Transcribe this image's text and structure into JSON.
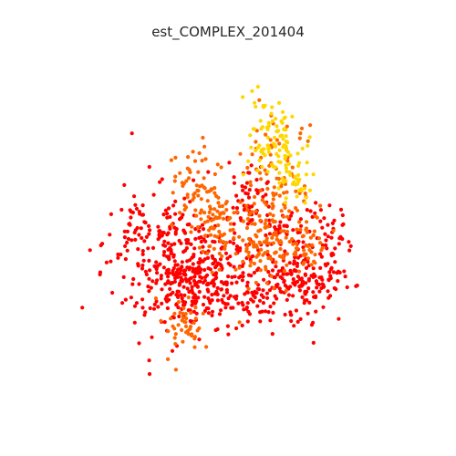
{
  "chart_data": {
    "type": "scatter",
    "title": "est_COMPLEX_201404",
    "xlabel": "",
    "ylabel": "",
    "xlim": [
      0,
      100
    ],
    "ylim": [
      0,
      100
    ],
    "grid": false,
    "axes_visible": false,
    "colors": {
      "red": "#ff0000",
      "orange": "#ff6600",
      "yellow": "#ffd700"
    },
    "seed": 20140401,
    "clusters": [
      {
        "color": "red",
        "n": 30,
        "cx": 22,
        "cy": 51,
        "rx": 3,
        "ry": 3
      },
      {
        "color": "red",
        "n": 160,
        "cx": 29,
        "cy": 41,
        "rx": 8,
        "ry": 12
      },
      {
        "color": "red",
        "n": 110,
        "cx": 38,
        "cy": 32,
        "rx": 6,
        "ry": 5
      },
      {
        "color": "red",
        "n": 40,
        "cx": 36,
        "cy": 50,
        "rx": 4,
        "ry": 3
      },
      {
        "color": "red",
        "n": 200,
        "cx": 52,
        "cy": 32,
        "rx": 12,
        "ry": 6
      },
      {
        "color": "red",
        "n": 50,
        "cx": 55,
        "cy": 59,
        "rx": 3,
        "ry": 5
      },
      {
        "color": "red",
        "n": 90,
        "cx": 68,
        "cy": 34,
        "rx": 6,
        "ry": 6
      },
      {
        "color": "red",
        "n": 90,
        "cx": 76,
        "cy": 42,
        "rx": 5,
        "ry": 7
      },
      {
        "color": "red",
        "n": 40,
        "cx": 45,
        "cy": 42,
        "rx": 5,
        "ry": 4
      },
      {
        "color": "red",
        "n": 50,
        "cx": 66,
        "cy": 50,
        "rx": 5,
        "ry": 4
      },
      {
        "color": "orange",
        "n": 60,
        "cx": 40,
        "cy": 62,
        "rx": 4,
        "ry": 6
      },
      {
        "color": "orange",
        "n": 40,
        "cx": 45,
        "cy": 47,
        "rx": 4,
        "ry": 5
      },
      {
        "color": "orange",
        "n": 45,
        "cx": 36,
        "cy": 22,
        "rx": 3,
        "ry": 4
      },
      {
        "color": "orange",
        "n": 160,
        "cx": 63,
        "cy": 55,
        "rx": 6,
        "ry": 12
      },
      {
        "color": "orange",
        "n": 45,
        "cx": 57,
        "cy": 46,
        "rx": 4,
        "ry": 4
      },
      {
        "color": "orange",
        "n": 30,
        "cx": 73,
        "cy": 44,
        "rx": 3,
        "ry": 3
      },
      {
        "color": "orange",
        "n": 25,
        "cx": 46,
        "cy": 55,
        "rx": 2,
        "ry": 3
      },
      {
        "color": "yellow",
        "n": 90,
        "cx": 62,
        "cy": 76,
        "rx": 4,
        "ry": 6
      },
      {
        "color": "yellow",
        "n": 25,
        "cx": 68,
        "cy": 66,
        "rx": 3,
        "ry": 4
      },
      {
        "color": "yellow",
        "n": 12,
        "cx": 71,
        "cy": 62,
        "rx": 2,
        "ry": 2
      }
    ]
  }
}
